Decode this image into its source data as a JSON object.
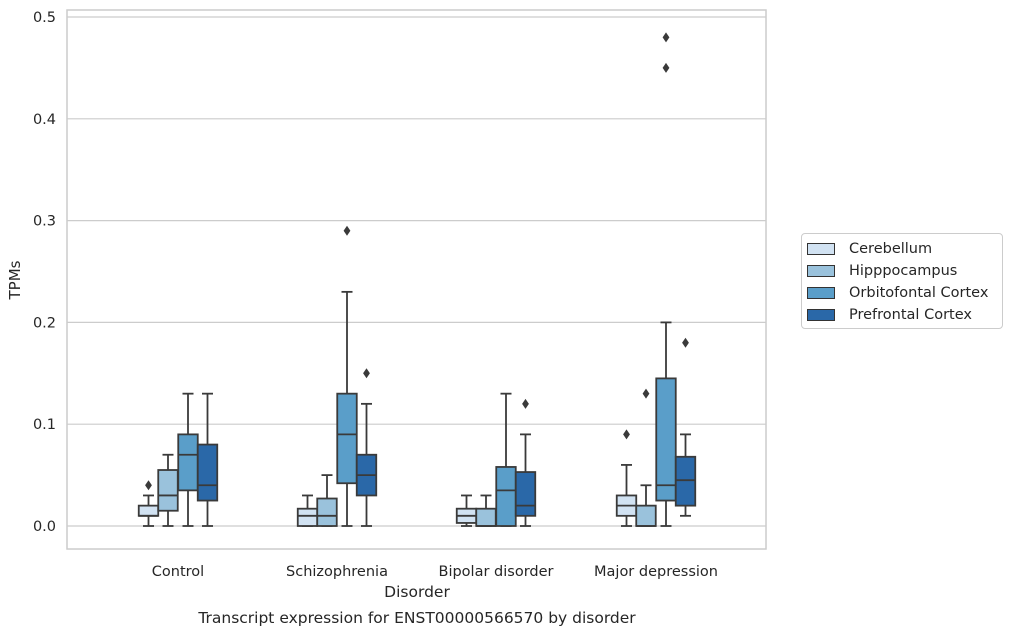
{
  "chart_data": {
    "type": "box",
    "xlabel": "Disorder",
    "ylabel": "TPMs",
    "caption": "Transcript expression for ENST00000566570 by disorder",
    "categories": [
      "Control",
      "Schizophrenia",
      "Bipolar disorder",
      "Major depression"
    ],
    "ylim": [
      -0.023,
      0.505
    ],
    "yticks": [
      0.0,
      0.1,
      0.2,
      0.3,
      0.4,
      0.5
    ],
    "ytick_labels": [
      "0.0",
      "0.1",
      "0.2",
      "0.3",
      "0.4",
      "0.5"
    ],
    "grid": "horizontal",
    "legend_position": "right, outside plot",
    "series": [
      {
        "name": "Cerebellum",
        "color": "#d1e2f2",
        "boxes": [
          {
            "category": "Control",
            "whisker_low": 0.0,
            "q1": 0.01,
            "median": 0.01,
            "q3": 0.02,
            "whisker_high": 0.03,
            "outliers": [
              0.04
            ]
          },
          {
            "category": "Schizophrenia",
            "whisker_low": 0.0,
            "q1": 0.0,
            "median": 0.01,
            "q3": 0.017,
            "whisker_high": 0.03,
            "outliers": []
          },
          {
            "category": "Bipolar disorder",
            "whisker_low": 0.0,
            "q1": 0.003,
            "median": 0.01,
            "q3": 0.017,
            "whisker_high": 0.03,
            "outliers": []
          },
          {
            "category": "Major depression",
            "whisker_low": 0.0,
            "q1": 0.01,
            "median": 0.02,
            "q3": 0.03,
            "whisker_high": 0.06,
            "outliers": [
              0.09
            ]
          }
        ]
      },
      {
        "name": "Hipppocampus",
        "color": "#9ac2dc",
        "boxes": [
          {
            "category": "Control",
            "whisker_low": 0.0,
            "q1": 0.015,
            "median": 0.03,
            "q3": 0.055,
            "whisker_high": 0.07,
            "outliers": []
          },
          {
            "category": "Schizophrenia",
            "whisker_low": 0.0,
            "q1": 0.0,
            "median": 0.01,
            "q3": 0.027,
            "whisker_high": 0.05,
            "outliers": []
          },
          {
            "category": "Bipolar disorder",
            "whisker_low": 0.0,
            "q1": 0.0,
            "median": 0.0,
            "q3": 0.017,
            "whisker_high": 0.03,
            "outliers": []
          },
          {
            "category": "Major depression",
            "whisker_low": 0.0,
            "q1": 0.0,
            "median": 0.0,
            "q3": 0.02,
            "whisker_high": 0.04,
            "outliers": [
              0.13
            ]
          }
        ]
      },
      {
        "name": "Orbitofontal Cortex",
        "color": "#5a9ec9",
        "boxes": [
          {
            "category": "Control",
            "whisker_low": 0.0,
            "q1": 0.035,
            "median": 0.07,
            "q3": 0.09,
            "whisker_high": 0.13,
            "outliers": []
          },
          {
            "category": "Schizophrenia",
            "whisker_low": 0.0,
            "q1": 0.042,
            "median": 0.09,
            "q3": 0.13,
            "whisker_high": 0.23,
            "outliers": [
              0.29
            ]
          },
          {
            "category": "Bipolar disorder",
            "whisker_low": 0.0,
            "q1": 0.0,
            "median": 0.035,
            "q3": 0.058,
            "whisker_high": 0.13,
            "outliers": []
          },
          {
            "category": "Major depression",
            "whisker_low": 0.0,
            "q1": 0.025,
            "median": 0.04,
            "q3": 0.145,
            "whisker_high": 0.2,
            "outliers": [
              0.45,
              0.48
            ]
          }
        ]
      },
      {
        "name": "Prefrontal Cortex",
        "color": "#2a68a8",
        "boxes": [
          {
            "category": "Control",
            "whisker_low": 0.0,
            "q1": 0.025,
            "median": 0.04,
            "q3": 0.08,
            "whisker_high": 0.13,
            "outliers": []
          },
          {
            "category": "Schizophrenia",
            "whisker_low": 0.0,
            "q1": 0.03,
            "median": 0.05,
            "q3": 0.07,
            "whisker_high": 0.12,
            "outliers": [
              0.15
            ]
          },
          {
            "category": "Bipolar disorder",
            "whisker_low": 0.0,
            "q1": 0.01,
            "median": 0.02,
            "q3": 0.053,
            "whisker_high": 0.09,
            "outliers": [
              0.12
            ]
          },
          {
            "category": "Major depression",
            "whisker_low": 0.01,
            "q1": 0.02,
            "median": 0.045,
            "q3": 0.068,
            "whisker_high": 0.09,
            "outliers": [
              0.18
            ]
          }
        ]
      }
    ]
  }
}
